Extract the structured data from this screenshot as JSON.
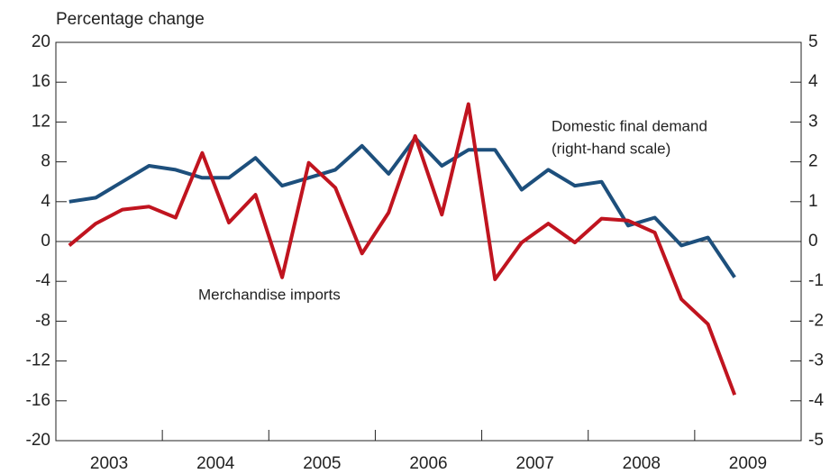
{
  "chart_data": {
    "type": "line",
    "y_axis_label": "Percentage change",
    "annotations": [
      "(right-hand scale)"
    ],
    "x": [
      2003.125,
      2003.375,
      2003.625,
      2003.875,
      2004.125,
      2004.375,
      2004.625,
      2004.875,
      2005.125,
      2005.375,
      2005.625,
      2005.875,
      2006.125,
      2006.375,
      2006.625,
      2006.875,
      2007.125,
      2007.375,
      2007.625,
      2007.875,
      2008.125,
      2008.375,
      2008.625,
      2008.875,
      2009.125,
      2009.375
    ],
    "xlim": [
      2003,
      2010
    ],
    "xticks": [
      {
        "value": 2003.5,
        "label": "2003"
      },
      {
        "value": 2004.5,
        "label": "2004"
      },
      {
        "value": 2005.5,
        "label": "2005"
      },
      {
        "value": 2006.5,
        "label": "2006"
      },
      {
        "value": 2007.5,
        "label": "2007"
      },
      {
        "value": 2008.5,
        "label": "2008"
      },
      {
        "value": 2009.5,
        "label": "2009"
      }
    ],
    "x_tick_marks": [
      2004,
      2005,
      2006,
      2007,
      2008,
      2009
    ],
    "ylim": [
      -20,
      20
    ],
    "yticks": [
      -20,
      -16,
      -12,
      -8,
      -4,
      0,
      4,
      8,
      12,
      16,
      20
    ],
    "y2lim": [
      -5,
      5
    ],
    "y2ticks": [
      -5,
      -4,
      -3,
      -2,
      -1,
      0,
      1,
      2,
      3,
      4,
      5
    ],
    "series": [
      {
        "name": "Merchandise imports",
        "color": "#c0141f",
        "axis": "y",
        "values": [
          -0.4,
          1.8,
          3.2,
          3.5,
          2.4,
          8.9,
          1.9,
          4.7,
          -3.6,
          7.9,
          5.4,
          -1.2,
          2.9,
          10.6,
          2.7,
          13.8,
          -3.8,
          -0.1,
          1.8,
          -0.1,
          2.3,
          2.1,
          0.9,
          -5.8,
          -8.3,
          -15.4
        ]
      },
      {
        "name": "Domestic final demand",
        "color": "#1d4f7c",
        "axis": "y2",
        "values": [
          1.0,
          1.1,
          1.5,
          1.9,
          1.8,
          1.6,
          1.6,
          2.1,
          1.4,
          1.6,
          1.8,
          2.4,
          1.7,
          2.6,
          1.9,
          2.3,
          2.3,
          1.3,
          1.8,
          1.4,
          1.5,
          0.4,
          0.6,
          -0.1,
          0.1,
          -0.9
        ]
      }
    ]
  }
}
